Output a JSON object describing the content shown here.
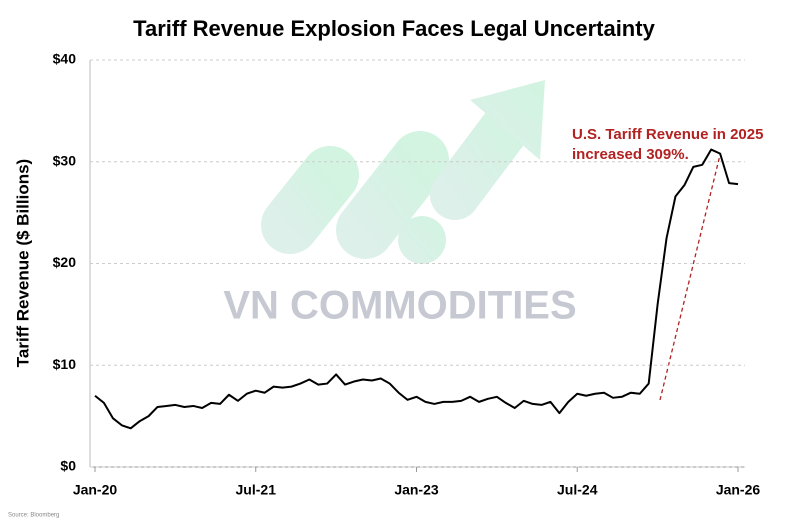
{
  "chart_data": {
    "type": "line",
    "title": "Tariff Revenue Explosion Faces Legal Uncertainty",
    "y_label": "Tariff Revenue ($ Billions)",
    "annotation": [
      "U.S. Tariff Revenue in 2025",
      "increased 309%."
    ],
    "watermark": "VN COMMODITIES",
    "source": "Source: Bloomberg",
    "categories": [
      "Jan-20",
      null,
      null,
      null,
      null,
      null,
      null,
      null,
      null,
      null,
      null,
      null,
      null,
      null,
      null,
      null,
      null,
      null,
      "Jul-21",
      null,
      null,
      null,
      null,
      null,
      null,
      null,
      null,
      null,
      null,
      null,
      null,
      null,
      null,
      null,
      null,
      null,
      "Jan-23",
      null,
      null,
      null,
      null,
      null,
      null,
      null,
      null,
      null,
      null,
      null,
      null,
      null,
      null,
      null,
      null,
      null,
      "Jul-24",
      null,
      null,
      null,
      null,
      null,
      null,
      null,
      null,
      null,
      null,
      null,
      null,
      null,
      null,
      null,
      null,
      null,
      "Jan-26"
    ],
    "series": [
      {
        "name": "Tariff Revenue",
        "color": "#000000",
        "values": [
          7.0,
          6.3,
          4.8,
          4.1,
          3.8,
          4.5,
          5.0,
          5.9,
          6.0,
          6.1,
          5.9,
          6.0,
          5.8,
          6.3,
          6.2,
          7.1,
          6.5,
          7.2,
          7.5,
          7.3,
          7.9,
          7.8,
          7.9,
          8.2,
          8.6,
          8.1,
          8.2,
          9.1,
          8.1,
          8.4,
          8.6,
          8.5,
          8.7,
          8.2,
          7.3,
          6.6,
          6.9,
          6.4,
          6.2,
          6.4,
          6.4,
          6.5,
          6.9,
          6.4,
          6.7,
          6.9,
          6.3,
          5.8,
          6.5,
          6.2,
          6.1,
          6.4,
          5.3,
          6.4,
          7.2,
          7.0,
          7.2,
          7.3,
          6.8,
          6.9,
          7.3,
          7.2,
          8.2,
          16.0,
          22.5,
          26.6,
          27.7,
          29.5,
          29.7,
          31.2,
          30.8,
          27.9,
          27.8
        ]
      }
    ],
    "ylim": [
      0,
      40
    ],
    "yticks": [
      {
        "value": 0,
        "label": "$0"
      },
      {
        "value": 10,
        "label": "$10"
      },
      {
        "value": 20,
        "label": "$20"
      },
      {
        "value": 30,
        "label": "$30"
      },
      {
        "value": 40,
        "label": "$40"
      }
    ],
    "grid": true,
    "annotation_color": "#b22222"
  }
}
